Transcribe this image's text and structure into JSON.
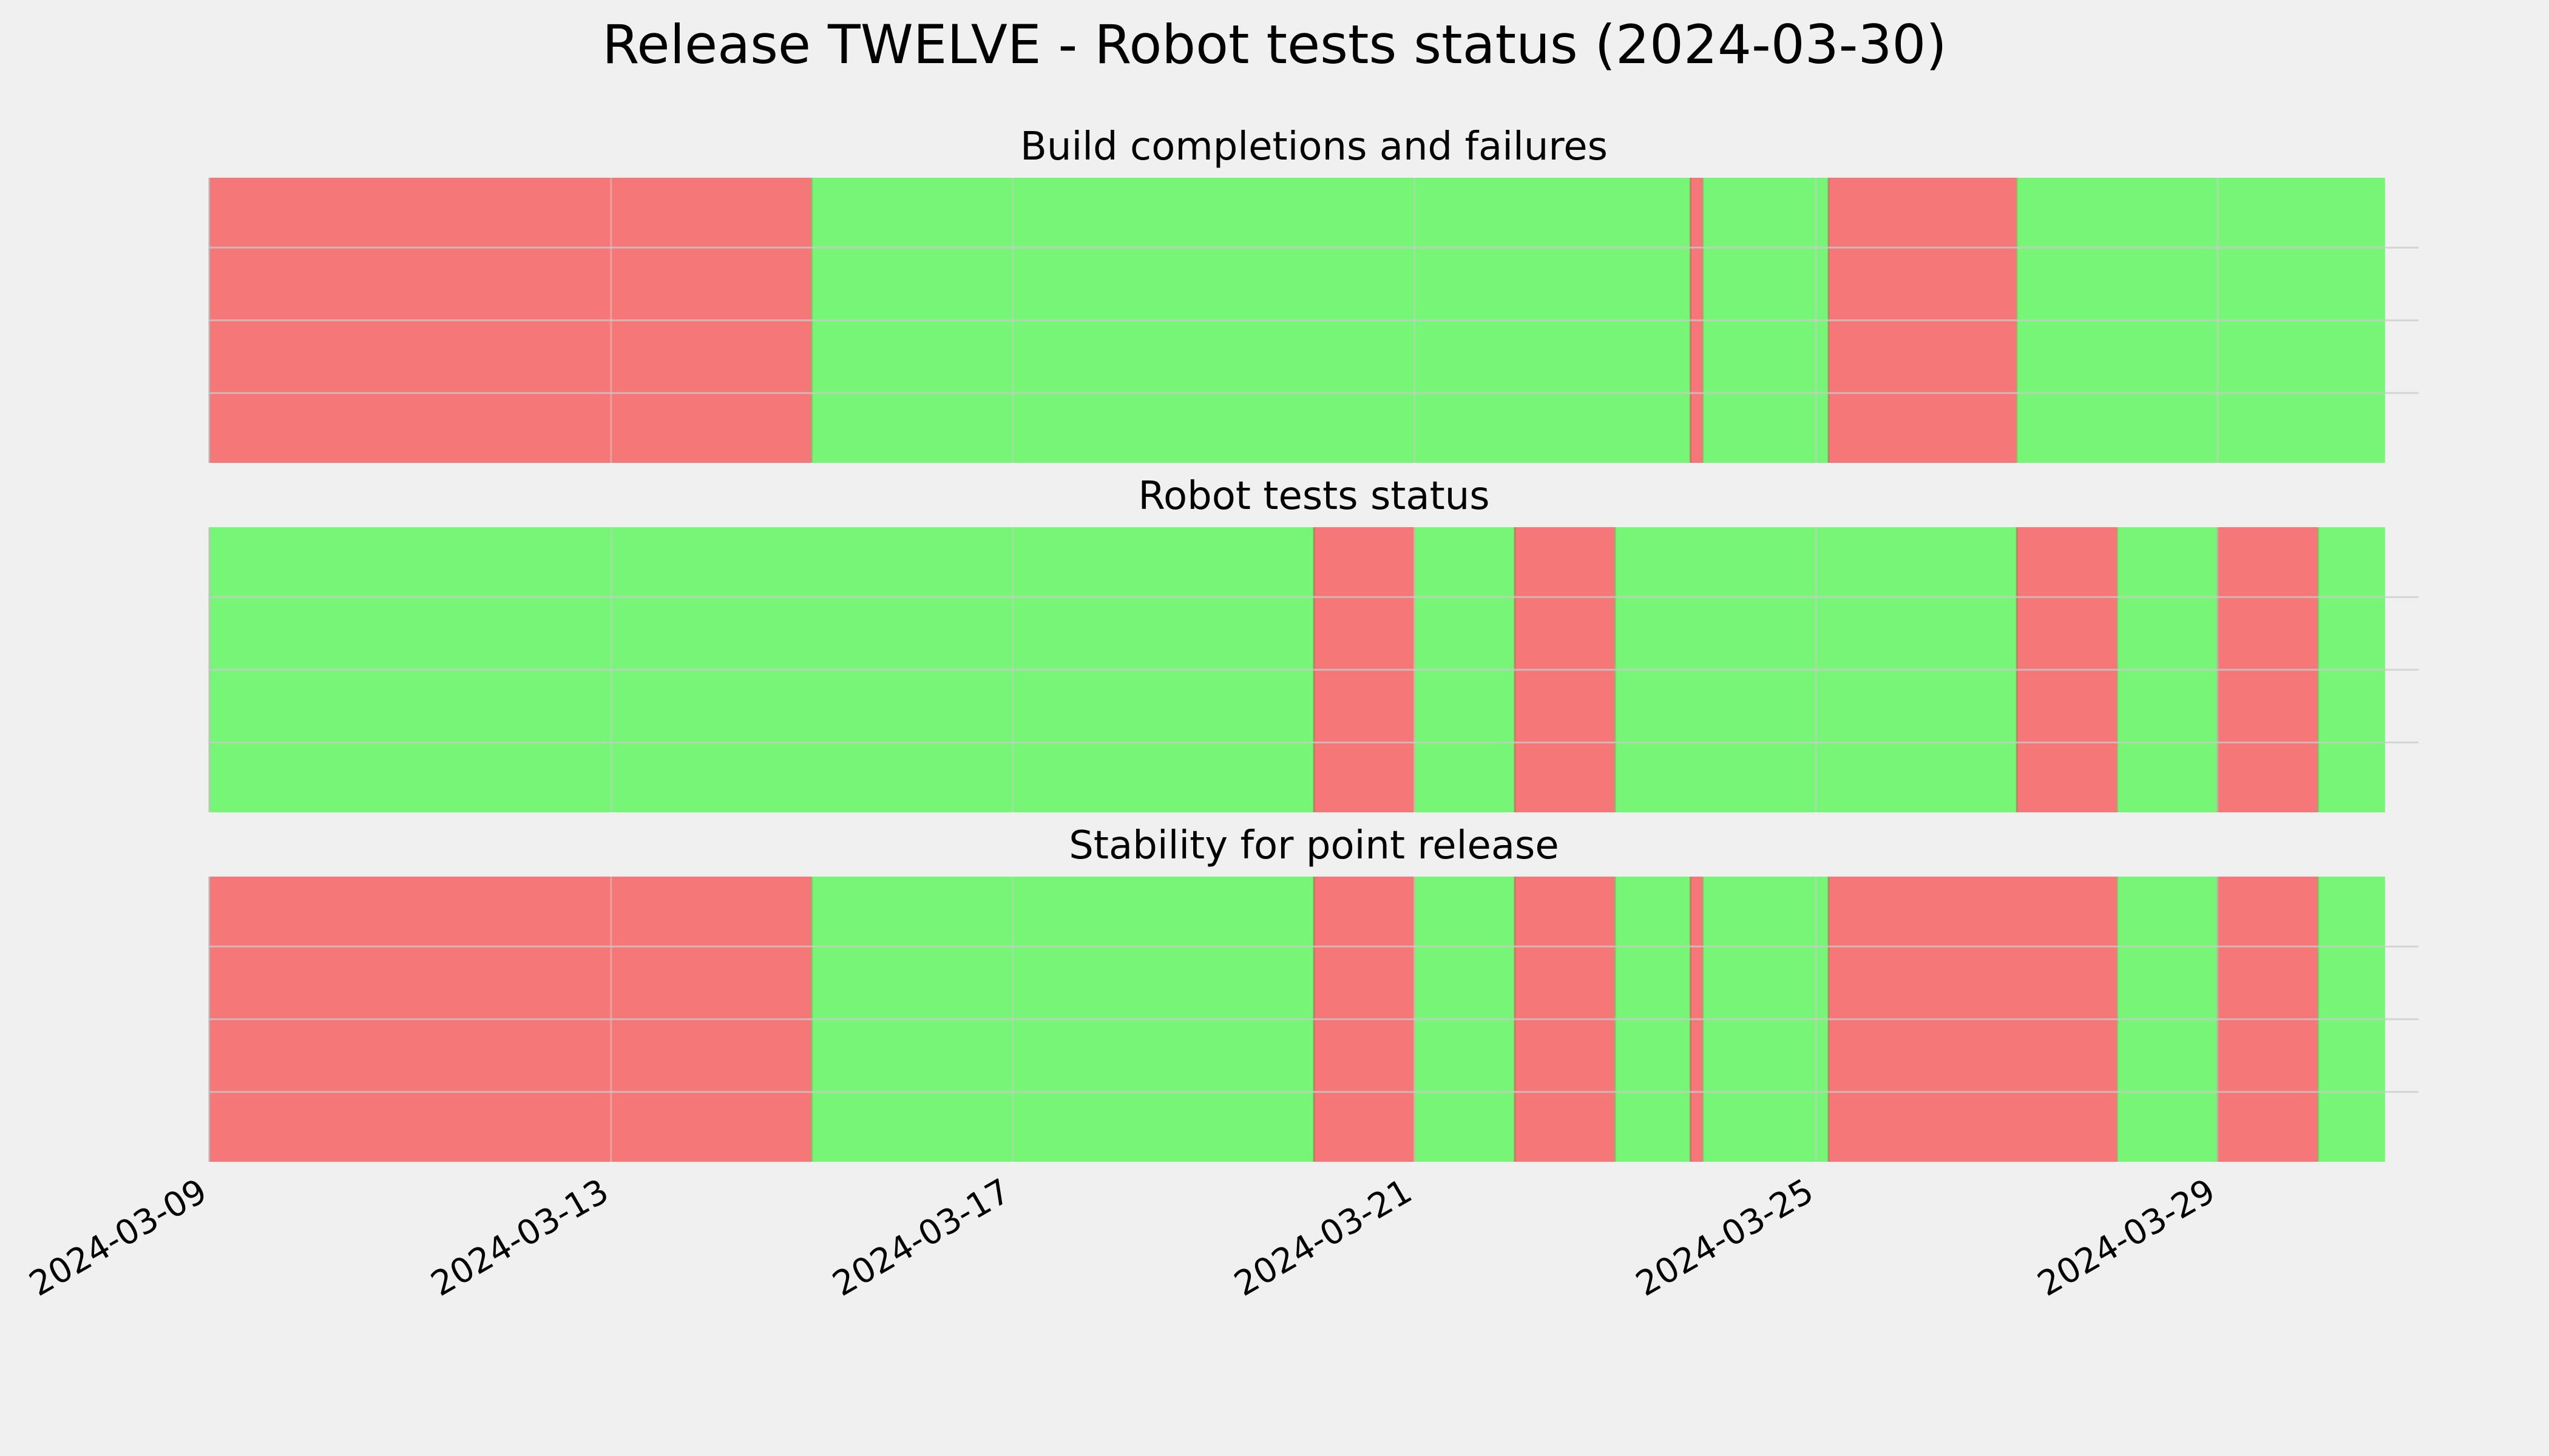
{
  "chart_data": {
    "type": "timeline",
    "title": "Release TWELVE - Robot tests status (2024-03-30)",
    "colors": {
      "pass": "#77f577",
      "fail": "#f57777",
      "background": "#f0f0f0",
      "grid": "#cbcbcb"
    },
    "xlim": [
      "2024-03-09",
      "2024-03-31"
    ],
    "x_ticks": [
      "2024-03-09",
      "2024-03-13",
      "2024-03-17",
      "2024-03-21",
      "2024-03-25",
      "2024-03-29"
    ],
    "grid": true,
    "panels": [
      {
        "title": "Build completions and failures",
        "segments": [
          {
            "start": "2024-03-09T00:00",
            "end": "2024-03-15T00:00",
            "status": "fail"
          },
          {
            "start": "2024-03-15T00:00",
            "end": "2024-03-23T18:00",
            "status": "pass"
          },
          {
            "start": "2024-03-23T18:00",
            "end": "2024-03-23T21:00",
            "status": "fail"
          },
          {
            "start": "2024-03-23T21:00",
            "end": "2024-03-25T03:00",
            "status": "pass"
          },
          {
            "start": "2024-03-25T03:00",
            "end": "2024-03-27T00:00",
            "status": "fail"
          },
          {
            "start": "2024-03-27T00:00",
            "end": "2024-03-30T16:00",
            "status": "pass"
          }
        ]
      },
      {
        "title": "Robot tests status",
        "segments": [
          {
            "start": "2024-03-09T00:00",
            "end": "2024-03-20T00:00",
            "status": "pass"
          },
          {
            "start": "2024-03-20T00:00",
            "end": "2024-03-21T00:00",
            "status": "fail"
          },
          {
            "start": "2024-03-21T00:00",
            "end": "2024-03-22T00:00",
            "status": "pass"
          },
          {
            "start": "2024-03-22T00:00",
            "end": "2024-03-23T00:00",
            "status": "fail"
          },
          {
            "start": "2024-03-23T00:00",
            "end": "2024-03-27T00:00",
            "status": "pass"
          },
          {
            "start": "2024-03-27T00:00",
            "end": "2024-03-28T00:00",
            "status": "fail"
          },
          {
            "start": "2024-03-28T00:00",
            "end": "2024-03-29T00:00",
            "status": "pass"
          },
          {
            "start": "2024-03-29T00:00",
            "end": "2024-03-30T00:00",
            "status": "fail"
          },
          {
            "start": "2024-03-30T00:00",
            "end": "2024-03-30T16:00",
            "status": "pass"
          }
        ]
      },
      {
        "title": "Stability for point release",
        "segments": [
          {
            "start": "2024-03-09T00:00",
            "end": "2024-03-15T00:00",
            "status": "fail"
          },
          {
            "start": "2024-03-15T00:00",
            "end": "2024-03-20T00:00",
            "status": "pass"
          },
          {
            "start": "2024-03-20T00:00",
            "end": "2024-03-21T00:00",
            "status": "fail"
          },
          {
            "start": "2024-03-21T00:00",
            "end": "2024-03-22T00:00",
            "status": "pass"
          },
          {
            "start": "2024-03-22T00:00",
            "end": "2024-03-23T00:00",
            "status": "fail"
          },
          {
            "start": "2024-03-23T00:00",
            "end": "2024-03-23T18:00",
            "status": "pass"
          },
          {
            "start": "2024-03-23T18:00",
            "end": "2024-03-23T21:00",
            "status": "fail"
          },
          {
            "start": "2024-03-23T21:00",
            "end": "2024-03-25T03:00",
            "status": "pass"
          },
          {
            "start": "2024-03-25T03:00",
            "end": "2024-03-28T00:00",
            "status": "fail"
          },
          {
            "start": "2024-03-28T00:00",
            "end": "2024-03-29T00:00",
            "status": "pass"
          },
          {
            "start": "2024-03-29T00:00",
            "end": "2024-03-30T00:00",
            "status": "fail"
          },
          {
            "start": "2024-03-30T00:00",
            "end": "2024-03-30T16:00",
            "status": "pass"
          }
        ]
      }
    ]
  }
}
